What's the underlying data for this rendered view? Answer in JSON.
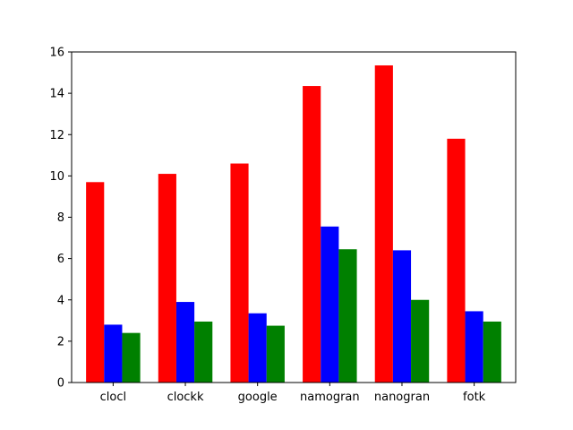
{
  "chart_data": {
    "type": "bar",
    "categories": [
      "clocl",
      "clockk",
      "google",
      "namogran",
      "nanogran",
      "fotk"
    ],
    "series": [
      {
        "color": "#ff0000",
        "values": [
          9.7,
          10.1,
          10.6,
          14.35,
          15.35,
          11.8
        ]
      },
      {
        "color": "#0000ff",
        "values": [
          2.8,
          3.9,
          3.35,
          7.55,
          6.4,
          3.45
        ]
      },
      {
        "color": "#008000",
        "values": [
          2.4,
          2.95,
          2.75,
          6.45,
          4.0,
          2.95
        ]
      }
    ],
    "yticks": [
      0,
      2,
      4,
      6,
      8,
      10,
      12,
      14,
      16
    ],
    "ylim": [
      0,
      16
    ],
    "title": "",
    "xlabel": "",
    "ylabel": "",
    "grid": false,
    "legend": "none"
  }
}
